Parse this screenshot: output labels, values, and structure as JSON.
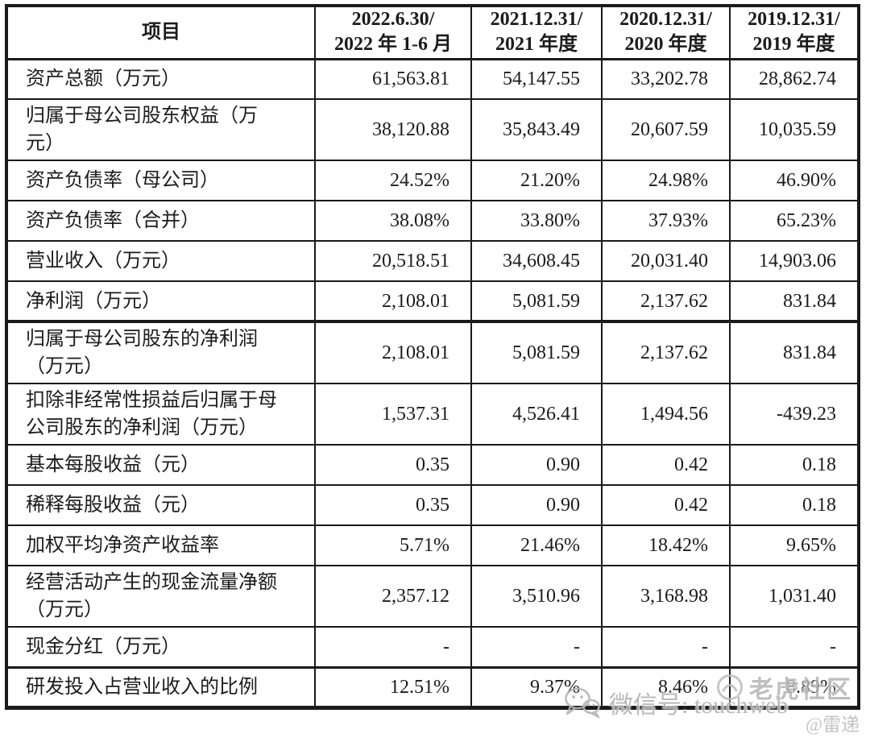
{
  "table": {
    "header": {
      "item": "项目",
      "periods": [
        {
          "line1": "2022.6.30/",
          "line2": "2022 年 1-6 月"
        },
        {
          "line1": "2021.12.31/",
          "line2": "2021 年度"
        },
        {
          "line1": "2020.12.31/",
          "line2": "2020 年度"
        },
        {
          "line1": "2019.12.31/",
          "line2": "2019 年度"
        }
      ]
    },
    "rows": [
      {
        "label": "资产总额（万元）",
        "values": [
          "61,563.81",
          "54,147.55",
          "33,202.78",
          "28,862.74"
        ]
      },
      {
        "label": "归属于母公司股东权益（万元）",
        "values": [
          "38,120.88",
          "35,843.49",
          "20,607.59",
          "10,035.59"
        ]
      },
      {
        "label": "资产负债率（母公司）",
        "values": [
          "24.52%",
          "21.20%",
          "24.98%",
          "46.90%"
        ]
      },
      {
        "label": "资产负债率（合并）",
        "values": [
          "38.08%",
          "33.80%",
          "37.93%",
          "65.23%"
        ]
      },
      {
        "label": "营业收入（万元）",
        "values": [
          "20,518.51",
          "34,608.45",
          "20,031.40",
          "14,903.06"
        ]
      },
      {
        "label": "净利润（万元）",
        "values": [
          "2,108.01",
          "5,081.59",
          "2,137.62",
          "831.84"
        ]
      },
      {
        "label": "归属于母公司股东的净利润（万元）",
        "values": [
          "2,108.01",
          "5,081.59",
          "2,137.62",
          "831.84"
        ]
      },
      {
        "label": "扣除非经常性损益后归属于母公司股东的净利润（万元）",
        "values": [
          "1,537.31",
          "4,526.41",
          "1,494.56",
          "-439.23"
        ]
      },
      {
        "label": "基本每股收益（元）",
        "values": [
          "0.35",
          "0.90",
          "0.42",
          "0.18"
        ]
      },
      {
        "label": "稀释每股收益（元）",
        "values": [
          "0.35",
          "0.90",
          "0.42",
          "0.18"
        ]
      },
      {
        "label": "加权平均净资产收益率",
        "values": [
          "5.71%",
          "21.46%",
          "18.42%",
          "9.65%"
        ]
      },
      {
        "label": "经营活动产生的现金流量净额（万元）",
        "values": [
          "2,357.12",
          "3,510.96",
          "3,168.98",
          "1,031.40"
        ]
      },
      {
        "label": "现金分红（万元）",
        "values": [
          "-",
          "-",
          "-",
          "-"
        ]
      },
      {
        "label": "研发投入占营业收入的比例",
        "values": [
          "12.51%",
          "9.37%",
          "8.46%",
          "8.89%"
        ]
      }
    ]
  },
  "watermark": {
    "wechat_id": "微信号: touchweb",
    "community": "老虎社区",
    "author": "@雷递"
  },
  "colors": {
    "table_border": "#1a1a1a",
    "text": "#1b1b1b",
    "watermark_gray": "#b3b3b3"
  }
}
